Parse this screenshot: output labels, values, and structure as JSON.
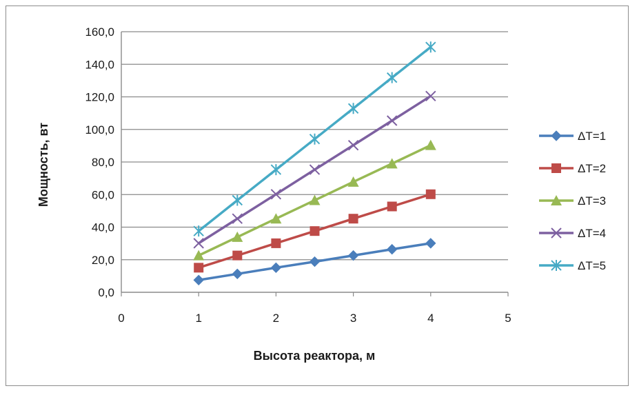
{
  "chart_data": {
    "type": "line",
    "title": "",
    "xlabel": "Высота реактора, м",
    "ylabel": "Мощность, вт",
    "xlim": [
      0,
      5
    ],
    "ylim": [
      0,
      160
    ],
    "x_ticks": [
      "0",
      "1",
      "2",
      "3",
      "4",
      "5"
    ],
    "y_ticks": [
      "0,0",
      "20,0",
      "40,0",
      "60,0",
      "80,0",
      "100,0",
      "120,0",
      "140,0",
      "160,0"
    ],
    "grid": "horizontal",
    "legend_position": "right",
    "x": [
      1,
      1.5,
      2,
      2.5,
      3,
      3.5,
      4
    ],
    "series": [
      {
        "name": "ΔT=1",
        "color": "#4a7ebb",
        "marker": "diamond",
        "values": [
          7.5,
          11.3,
          15.1,
          18.8,
          22.6,
          26.4,
          30.1
        ]
      },
      {
        "name": "ΔT=2",
        "color": "#be4b48",
        "marker": "square",
        "values": [
          15.1,
          22.6,
          30.1,
          37.6,
          45.2,
          52.7,
          60.2
        ]
      },
      {
        "name": "ΔT=3",
        "color": "#98b954",
        "marker": "triangle",
        "values": [
          22.6,
          33.9,
          45.2,
          56.5,
          67.8,
          79.0,
          90.3
        ]
      },
      {
        "name": "ΔT=4",
        "color": "#7d60a0",
        "marker": "x",
        "values": [
          30.1,
          45.2,
          60.2,
          75.3,
          90.3,
          105.4,
          120.5
        ]
      },
      {
        "name": "ΔT=5",
        "color": "#46aac5",
        "marker": "star",
        "values": [
          37.6,
          56.5,
          75.3,
          94.1,
          112.9,
          131.8,
          150.6
        ]
      }
    ]
  }
}
